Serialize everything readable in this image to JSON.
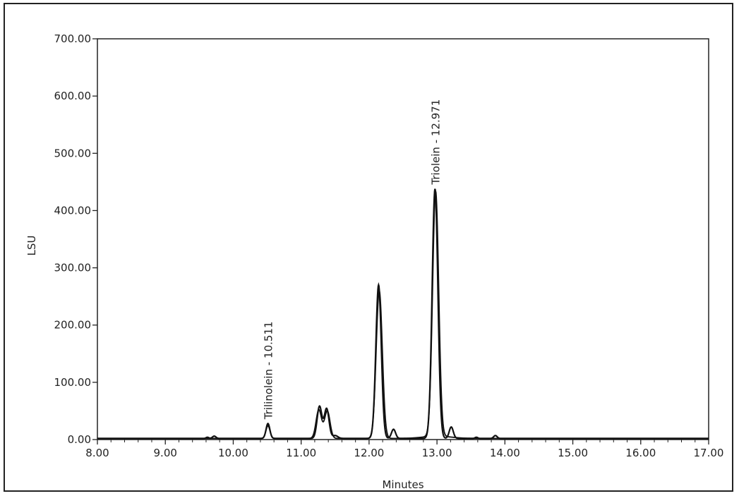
{
  "chart_data": {
    "type": "line",
    "title": "",
    "xlabel": "Minutes",
    "ylabel": "LSU",
    "xlim": [
      8.0,
      17.0
    ],
    "ylim": [
      0.0,
      700.0
    ],
    "x_ticks": [
      "8.00",
      "9.00",
      "10.00",
      "11.00",
      "12.00",
      "13.00",
      "14.00",
      "15.00",
      "16.00",
      "17.00"
    ],
    "y_ticks": [
      "0.00",
      "100.00",
      "200.00",
      "300.00",
      "400.00",
      "500.00",
      "600.00",
      "700.00"
    ],
    "grid": false,
    "annotations": [
      {
        "text": "Trilinolein - 10.511",
        "x": 10.511,
        "y": 28
      },
      {
        "text": "Triolein - 12.971",
        "x": 12.971,
        "y": 438
      }
    ],
    "series": [
      {
        "baseline": 2,
        "peaks": [
          {
            "t": 9.62,
            "h": 2,
            "w": 0.02
          },
          {
            "t": 9.72,
            "h": 4,
            "w": 0.025
          },
          {
            "t": 10.511,
            "h": 26,
            "w": 0.028
          },
          {
            "t": 11.27,
            "h": 56,
            "w": 0.035
          },
          {
            "t": 11.375,
            "h": 52,
            "w": 0.035
          },
          {
            "t": 11.5,
            "h": 5,
            "w": 0.04
          },
          {
            "t": 12.14,
            "h": 268,
            "w": 0.04
          },
          {
            "t": 12.36,
            "h": 16,
            "w": 0.03
          },
          {
            "t": 12.971,
            "h": 436,
            "w": 0.042
          },
          {
            "t": 13.21,
            "h": 20,
            "w": 0.03
          },
          {
            "t": 13.58,
            "h": 2,
            "w": 0.02
          },
          {
            "t": 13.86,
            "h": 5,
            "w": 0.025
          }
        ]
      },
      {
        "baseline": 2,
        "peaks": [
          {
            "t": 10.511,
            "h": 22,
            "w": 0.03
          },
          {
            "t": 11.26,
            "h": 50,
            "w": 0.04
          },
          {
            "t": 11.385,
            "h": 48,
            "w": 0.04
          },
          {
            "t": 12.15,
            "h": 258,
            "w": 0.045
          },
          {
            "t": 12.98,
            "h": 428,
            "w": 0.045
          },
          {
            "t": 13.0,
            "h": 4,
            "w": 0.2
          }
        ]
      }
    ]
  }
}
